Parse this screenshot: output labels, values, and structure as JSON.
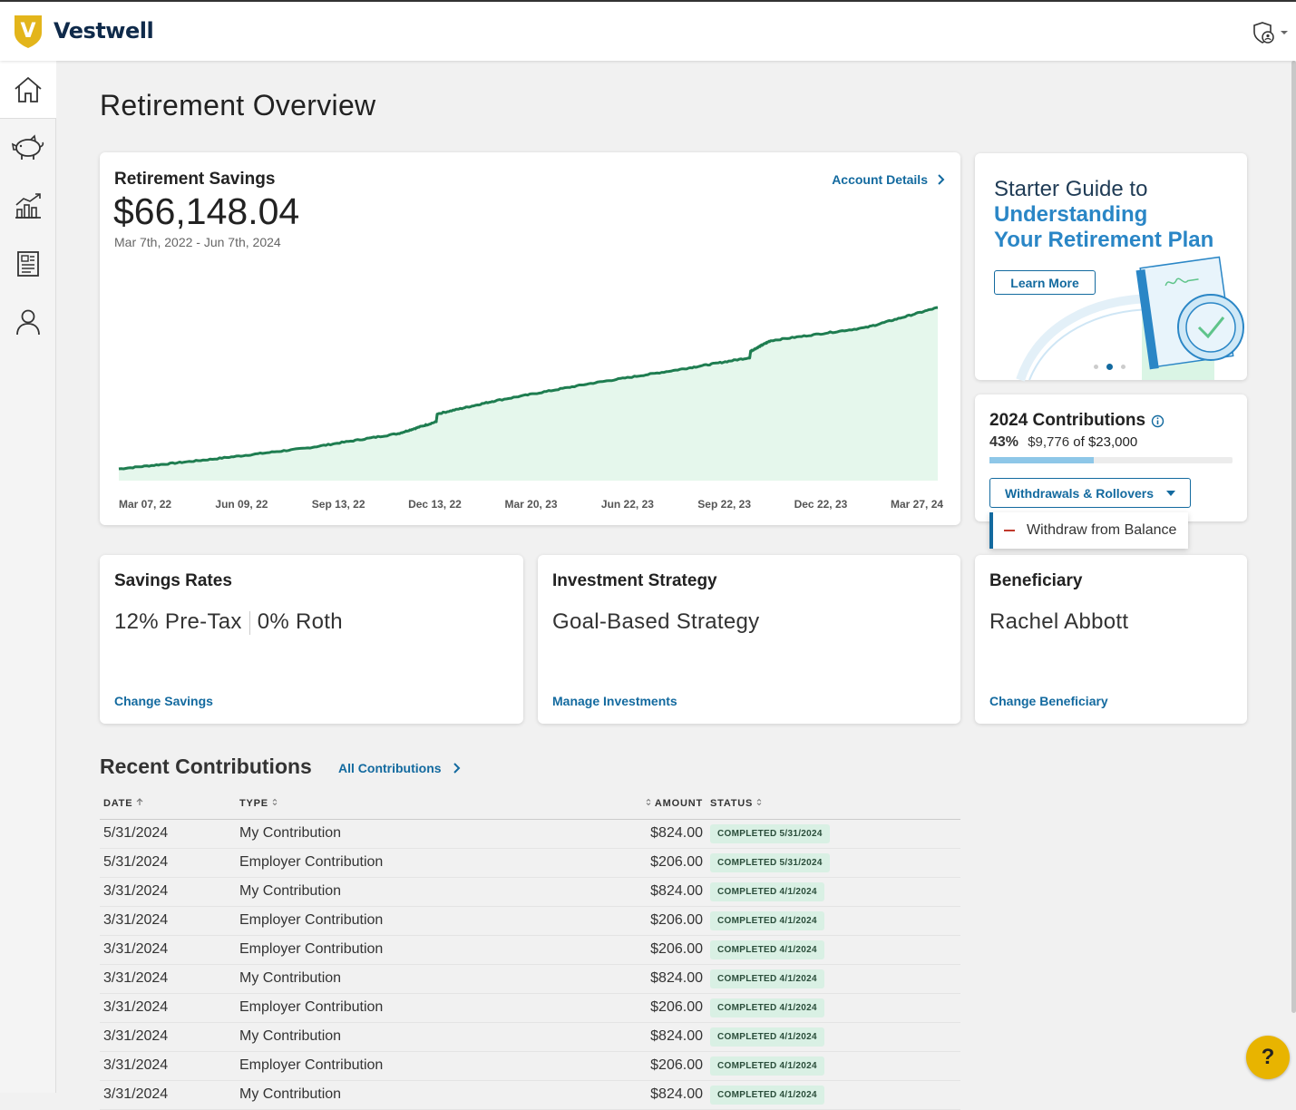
{
  "brand": {
    "name": "Vestwell",
    "logo_letter": "V"
  },
  "page_title": "Retirement Overview",
  "savings": {
    "title": "Retirement Savings",
    "balance": "$66,148.04",
    "date_range": "Mar 7th, 2022 - Jun 7th, 2024",
    "link": "Account Details"
  },
  "chart_data": {
    "type": "area",
    "x_tick_labels": [
      "Mar 07, 22",
      "Jun 09, 22",
      "Sep 13, 22",
      "Dec 13, 22",
      "Mar 20, 23",
      "Jun 22, 23",
      "Sep 22, 23",
      "Dec 22, 23",
      "Mar 27, 24"
    ],
    "x": [
      "2022-03-07",
      "2022-06-09",
      "2022-09-13",
      "2022-12-13",
      "2023-01-20",
      "2023-01-21",
      "2023-03-20",
      "2023-06-22",
      "2023-09-22",
      "2023-12-01",
      "2023-12-02",
      "2023-12-22",
      "2024-03-27",
      "2024-06-07"
    ],
    "values": [
      4500,
      8200,
      12500,
      18000,
      22500,
      25500,
      30500,
      37000,
      42500,
      47000,
      49500,
      53500,
      58500,
      66148.04
    ],
    "color": "#1e7d50",
    "fill": "#e5f7ec",
    "grid": false,
    "title": "",
    "xlabel": "",
    "ylabel": ""
  },
  "guide": {
    "line1": "Starter Guide to",
    "line2": "Understanding",
    "line3": "Your Retirement Plan",
    "button": "Learn More",
    "carousel_slide": 2,
    "carousel_total": 3
  },
  "contributions_2024": {
    "title": "2024 Contributions",
    "percent": "43%",
    "amount": "$9,776",
    "of_text": "of",
    "limit": "$23,000",
    "progress": 0.43,
    "button": "Withdrawals & Rollovers",
    "dropdown_item": "Withdraw from Balance"
  },
  "savings_rates": {
    "title": "Savings Rates",
    "pretax": "12% Pre-Tax",
    "roth": "0% Roth",
    "link": "Change Savings"
  },
  "investment": {
    "title": "Investment Strategy",
    "value": "Goal-Based Strategy",
    "link": "Manage Investments"
  },
  "beneficiary": {
    "title": "Beneficiary",
    "value": "Rachel Abbott",
    "link": "Change Beneficiary"
  },
  "recent": {
    "title": "Recent Contributions",
    "link": "All Contributions",
    "headers": {
      "date": "DATE",
      "type": "TYPE",
      "amount": "AMOUNT",
      "status": "STATUS"
    },
    "rows": [
      {
        "date": "5/31/2024",
        "type": "My Contribution",
        "amount": "$824.00",
        "status": "COMPLETED 5/31/2024"
      },
      {
        "date": "5/31/2024",
        "type": "Employer Contribution",
        "amount": "$206.00",
        "status": "COMPLETED 5/31/2024"
      },
      {
        "date": "3/31/2024",
        "type": "My Contribution",
        "amount": "$824.00",
        "status": "COMPLETED 4/1/2024"
      },
      {
        "date": "3/31/2024",
        "type": "Employer Contribution",
        "amount": "$206.00",
        "status": "COMPLETED 4/1/2024"
      },
      {
        "date": "3/31/2024",
        "type": "Employer Contribution",
        "amount": "$206.00",
        "status": "COMPLETED 4/1/2024"
      },
      {
        "date": "3/31/2024",
        "type": "My Contribution",
        "amount": "$824.00",
        "status": "COMPLETED 4/1/2024"
      },
      {
        "date": "3/31/2024",
        "type": "Employer Contribution",
        "amount": "$206.00",
        "status": "COMPLETED 4/1/2024"
      },
      {
        "date": "3/31/2024",
        "type": "My Contribution",
        "amount": "$824.00",
        "status": "COMPLETED 4/1/2024"
      },
      {
        "date": "3/31/2024",
        "type": "Employer Contribution",
        "amount": "$206.00",
        "status": "COMPLETED 4/1/2024"
      },
      {
        "date": "3/31/2024",
        "type": "My Contribution",
        "amount": "$824.00",
        "status": "COMPLETED 4/1/2024"
      }
    ]
  },
  "help": {
    "label": "?"
  },
  "icons": {
    "nav": [
      "home-icon",
      "piggy-bank-icon",
      "chart-icon",
      "document-icon",
      "user-icon"
    ],
    "user_menu": "shield-user-icon"
  }
}
